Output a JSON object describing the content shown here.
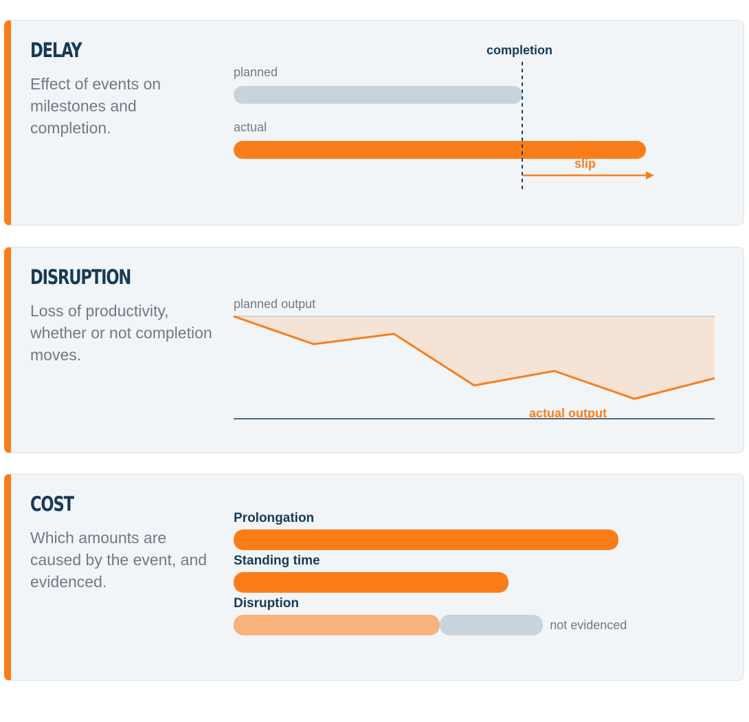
{
  "colors": {
    "accent": "#fa7d19",
    "accent_light": "#f8b27c",
    "grey_bar": "#c8d4dd",
    "dark": "#173a55",
    "muted": "#6e7a86",
    "fill": "#f5e3d6",
    "card_bg": "#f2f5f8"
  },
  "delay": {
    "title": "DELAY",
    "description": "Effect of events on milestones and completion.",
    "planned_label": "planned",
    "actual_label": "actual",
    "completion_label": "completion",
    "slip_label": "slip"
  },
  "disruption": {
    "title": "DISRUPTION",
    "description": "Loss of productivity, whether or not completion moves.",
    "planned_output_label": "planned output",
    "actual_output_label": "actual output",
    "actual_output_shape": [
      0,
      0.27,
      0.17,
      0.67,
      0.53,
      0.8,
      0.6
    ]
  },
  "cost": {
    "title": "COST",
    "description": "Which amounts are caused by the event, and evidenced.",
    "items": [
      {
        "label": "Prolongation",
        "share": 1.0
      },
      {
        "label": "Standing time",
        "share": 0.714
      },
      {
        "label": "Disruption",
        "evidenced_share": 0.536,
        "not_evidenced_share": 0.268
      }
    ],
    "not_evidenced_label": "not evidenced"
  }
}
